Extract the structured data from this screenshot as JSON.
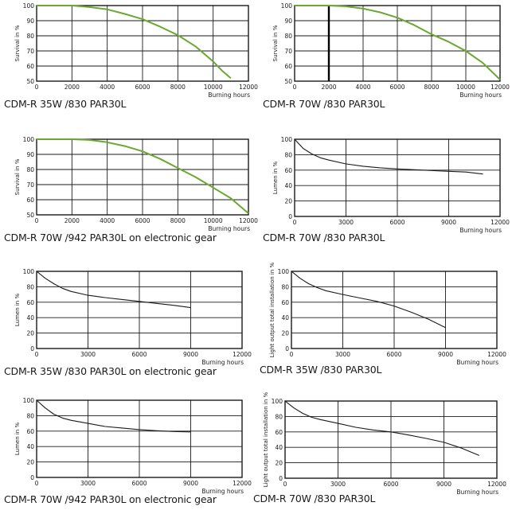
{
  "chart_data": [
    {
      "type": "line",
      "ylabel": "Survival in %",
      "xlabel": "Burning hours",
      "caption": "CDM-R 35W /830 PAR30L",
      "xlim": [
        0,
        12000
      ],
      "ylim": [
        50,
        100
      ],
      "xticks": [
        "0",
        "2000",
        "4000",
        "6000",
        "8000",
        "10000",
        "12000"
      ],
      "yticks": [
        "50",
        "60",
        "70",
        "80",
        "90",
        "100"
      ],
      "series": [
        {
          "color": "#6aa832",
          "x": [
            0,
            2000,
            3000,
            4000,
            5000,
            6000,
            7000,
            8000,
            9000,
            10000,
            10500,
            11000
          ],
          "y": [
            100,
            100,
            99,
            97.5,
            94.5,
            91,
            86,
            80.5,
            73,
            63,
            57,
            52
          ]
        }
      ]
    },
    {
      "type": "line",
      "ylabel": "Survival in %",
      "xlabel": "Burning hours",
      "caption": "CDM-R 70W /830 PAR30L",
      "xlim": [
        0,
        12000
      ],
      "ylim": [
        50,
        100
      ],
      "xticks": [
        "0",
        "2000",
        "4000",
        "6000",
        "8000",
        "10000",
        "12000"
      ],
      "yticks": [
        "50",
        "60",
        "70",
        "80",
        "90",
        "100"
      ],
      "marker_x": 2000,
      "series": [
        {
          "color": "#6aa832",
          "x": [
            0,
            2000,
            3000,
            4000,
            5000,
            6000,
            7000,
            8000,
            9000,
            10000,
            11000,
            12000
          ],
          "y": [
            100,
            100,
            99.5,
            98,
            95.5,
            92,
            87,
            81,
            76,
            70,
            62,
            51
          ]
        }
      ]
    },
    {
      "type": "line",
      "ylabel": "Survival in %",
      "xlabel": "Burning hours",
      "caption": "CDM-R 70W /942 PAR30L on electronic gear",
      "xlim": [
        0,
        12000
      ],
      "ylim": [
        50,
        100
      ],
      "xticks": [
        "0",
        "2000",
        "4000",
        "6000",
        "8000",
        "10000",
        "12000"
      ],
      "yticks": [
        "50",
        "60",
        "70",
        "80",
        "90",
        "100"
      ],
      "series": [
        {
          "color": "#6aa832",
          "x": [
            0,
            2000,
            3000,
            4000,
            5000,
            6000,
            7000,
            8000,
            9000,
            10000,
            11000,
            12000
          ],
          "y": [
            100,
            100,
            99.5,
            98,
            95.5,
            92,
            87,
            81,
            75,
            68,
            61,
            51
          ]
        }
      ]
    },
    {
      "type": "line",
      "ylabel": "Lumen in %",
      "xlabel": "Burning hours",
      "caption": "CDM-R 70W /830 PAR30L",
      "xlim": [
        0,
        12000
      ],
      "ylim": [
        0,
        100
      ],
      "xticks": [
        "0",
        "3000",
        "6000",
        "9000",
        "12000"
      ],
      "yticks": [
        "0",
        "20",
        "40",
        "60",
        "80",
        "100"
      ],
      "series": [
        {
          "color": "#1a1a1a",
          "x": [
            0,
            500,
            1000,
            1500,
            2000,
            3000,
            4000,
            5000,
            6000,
            7000,
            8000,
            9000,
            10000,
            11000
          ],
          "y": [
            100,
            88,
            81,
            76,
            73,
            68,
            65,
            63,
            61.5,
            60.5,
            59.5,
            58.5,
            57.5,
            55
          ]
        }
      ]
    },
    {
      "type": "line",
      "ylabel": "Lumen in %",
      "xlabel": "Burning hours",
      "caption": "CDM-R 35W /830 PAR30L on electronic gear",
      "xlim": [
        0,
        12000
      ],
      "ylim": [
        0,
        100
      ],
      "xticks": [
        "0",
        "3000",
        "6000",
        "9000",
        "12000"
      ],
      "yticks": [
        "0",
        "20",
        "40",
        "60",
        "80",
        "100"
      ],
      "series": [
        {
          "color": "#1a1a1a",
          "x": [
            0,
            500,
            1000,
            1500,
            2000,
            3000,
            4000,
            5000,
            6000,
            7000,
            8000,
            9000
          ],
          "y": [
            100,
            91,
            84,
            78,
            74,
            69,
            66,
            63.5,
            61,
            58.5,
            56,
            53
          ]
        }
      ]
    },
    {
      "type": "line",
      "ylabel": "Light output total installation in %",
      "xlabel": "Burning hours",
      "caption": "CDM-R 35W /830 PAR30L",
      "xlim": [
        0,
        12000
      ],
      "ylim": [
        0,
        100
      ],
      "xticks": [
        "0",
        "3000",
        "6000",
        "9000",
        "12000"
      ],
      "yticks": [
        "0",
        "20",
        "40",
        "60",
        "80",
        "100"
      ],
      "series": [
        {
          "color": "#1a1a1a",
          "x": [
            0,
            500,
            1000,
            1500,
            2000,
            3000,
            4000,
            5000,
            6000,
            7000,
            8000,
            9000
          ],
          "y": [
            100,
            91,
            84,
            79,
            75,
            70,
            65.5,
            61,
            55,
            47,
            38,
            27
          ]
        }
      ]
    },
    {
      "type": "line",
      "ylabel": "Lumen in %",
      "xlabel": "Burning hours",
      "caption": "CDM-R 70W /942 PAR30L on electronic gear",
      "xlim": [
        0,
        12000
      ],
      "ylim": [
        0,
        100
      ],
      "xticks": [
        "0",
        "3000",
        "6000",
        "9000",
        "12000"
      ],
      "yticks": [
        "0",
        "20",
        "40",
        "60",
        "80",
        "100"
      ],
      "series": [
        {
          "color": "#1a1a1a",
          "x": [
            0,
            500,
            1000,
            1500,
            2000,
            3000,
            4000,
            5000,
            6000,
            7000,
            8000,
            9000
          ],
          "y": [
            100,
            90,
            82,
            77,
            74,
            70,
            66,
            64,
            62,
            60.5,
            59.5,
            59
          ]
        }
      ]
    },
    {
      "type": "line",
      "ylabel": "Light output total installation in %",
      "xlabel": "Burning hours",
      "caption": "CDM-R 70W /830 PAR30L",
      "xlim": [
        0,
        12000
      ],
      "ylim": [
        0,
        100
      ],
      "xticks": [
        "0",
        "3000",
        "6000",
        "9000",
        "12000"
      ],
      "yticks": [
        "0",
        "20",
        "40",
        "60",
        "80",
        "100"
      ],
      "series": [
        {
          "color": "#1a1a1a",
          "x": [
            0,
            500,
            1000,
            1500,
            2000,
            3000,
            4000,
            5000,
            6000,
            7000,
            8000,
            9000,
            10000,
            11000
          ],
          "y": [
            100,
            91,
            84,
            79,
            76,
            71,
            66,
            62.5,
            60,
            56,
            51.5,
            46.5,
            39,
            29.5
          ]
        }
      ]
    }
  ]
}
